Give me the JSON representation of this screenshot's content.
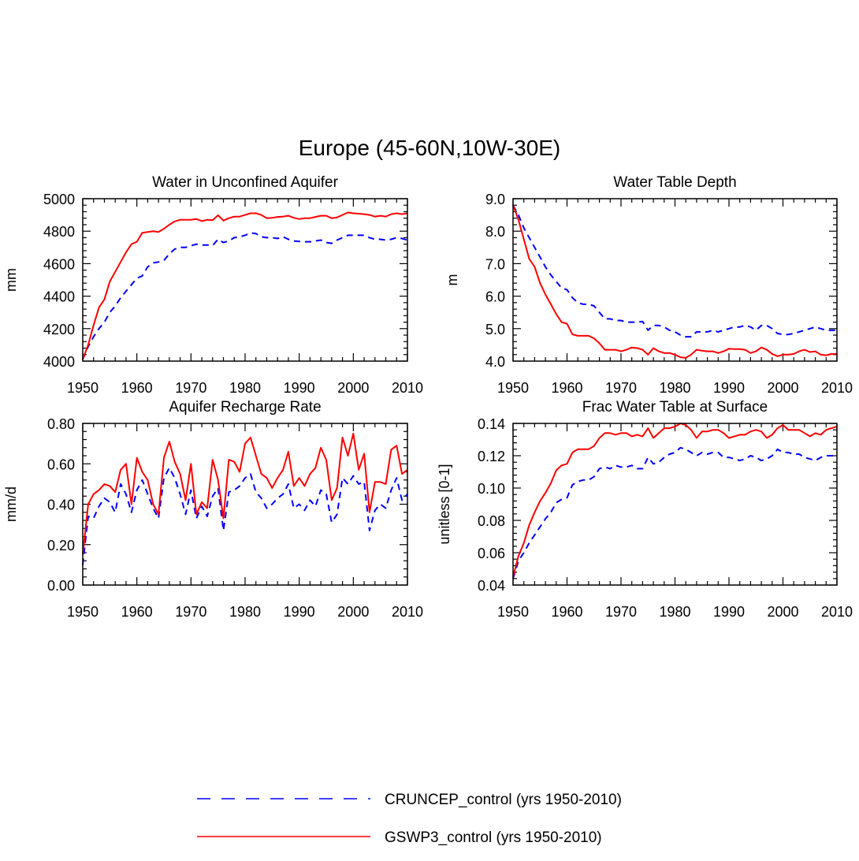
{
  "title": "Europe (45-60N,10W-30E)",
  "colors": {
    "cruncep": "#0000ff",
    "gswp3": "#ff0000"
  },
  "legend": [
    {
      "label": "CRUNCEP_control (yrs 1950-2010)",
      "color": "#0000ff",
      "style": "dashed"
    },
    {
      "label": "GSWP3_control (yrs 1950-2010)",
      "color": "#ff0000",
      "style": "solid"
    }
  ],
  "chart_data": [
    {
      "type": "line",
      "title": "Water in Unconfined Aquifer",
      "xlabel": "",
      "ylabel": "mm",
      "xlim": [
        1950,
        2010
      ],
      "ylim": [
        4000,
        5000
      ],
      "xticks": [
        "1950",
        "1960",
        "1970",
        "1980",
        "1990",
        "2000",
        "2010"
      ],
      "yticks": [
        "4000",
        "4200",
        "4400",
        "4600",
        "4800",
        "5000"
      ],
      "x_start": 1950,
      "series": [
        {
          "name": "CRUNCEP_control",
          "values": [
            4010,
            4090,
            4150,
            4200,
            4240,
            4300,
            4340,
            4390,
            4430,
            4470,
            4510,
            4525,
            4580,
            4605,
            4610,
            4620,
            4660,
            4690,
            4700,
            4700,
            4710,
            4720,
            4715,
            4715,
            4712,
            4750,
            4730,
            4740,
            4760,
            4765,
            4775,
            4790,
            4785,
            4765,
            4760,
            4760,
            4755,
            4765,
            4750,
            4740,
            4737,
            4735,
            4735,
            4740,
            4745,
            4730,
            4725,
            4745,
            4760,
            4775,
            4775,
            4775,
            4775,
            4760,
            4750,
            4750,
            4745,
            4750,
            4760,
            4755,
            4745
          ]
        },
        {
          "name": "GSWP3_control",
          "values": [
            4010,
            4100,
            4220,
            4330,
            4380,
            4490,
            4550,
            4610,
            4670,
            4720,
            4735,
            4790,
            4795,
            4800,
            4795,
            4815,
            4840,
            4860,
            4870,
            4870,
            4870,
            4875,
            4862,
            4870,
            4868,
            4898,
            4865,
            4880,
            4890,
            4890,
            4900,
            4910,
            4910,
            4900,
            4880,
            4882,
            4888,
            4890,
            4895,
            4882,
            4875,
            4880,
            4880,
            4888,
            4895,
            4895,
            4880,
            4885,
            4900,
            4915,
            4910,
            4908,
            4905,
            4900,
            4890,
            4895,
            4890,
            4905,
            4910,
            4905,
            4910
          ]
        }
      ]
    },
    {
      "type": "line",
      "title": "Water Table Depth",
      "xlabel": "",
      "ylabel": "m",
      "xlim": [
        1950,
        2010
      ],
      "ylim": [
        4.0,
        9.0
      ],
      "xticks": [
        "1950",
        "1960",
        "1970",
        "1980",
        "1990",
        "2000",
        "2010"
      ],
      "yticks": [
        "4.0",
        "5.0",
        "6.0",
        "7.0",
        "8.0",
        "9.0"
      ],
      "x_start": 1950,
      "series": [
        {
          "name": "CRUNCEP_control",
          "values": [
            8.8,
            8.5,
            8.1,
            7.8,
            7.5,
            7.2,
            6.9,
            6.65,
            6.45,
            6.25,
            6.2,
            5.95,
            5.8,
            5.75,
            5.75,
            5.7,
            5.5,
            5.3,
            5.3,
            5.25,
            5.25,
            5.2,
            5.2,
            5.2,
            5.22,
            4.95,
            5.1,
            5.1,
            5.05,
            4.95,
            4.9,
            4.8,
            4.75,
            4.75,
            4.9,
            4.9,
            4.9,
            4.95,
            4.9,
            4.95,
            5.0,
            5.05,
            5.05,
            5.1,
            5.05,
            4.95,
            5.1,
            5.1,
            5.0,
            4.85,
            4.82,
            4.82,
            4.85,
            4.9,
            4.95,
            5.0,
            5.05,
            5.0,
            4.95,
            4.95,
            4.95
          ]
        },
        {
          "name": "GSWP3_control",
          "values": [
            8.8,
            8.35,
            7.75,
            7.15,
            6.9,
            6.4,
            6.05,
            5.75,
            5.45,
            5.2,
            5.15,
            4.82,
            4.78,
            4.78,
            4.78,
            4.7,
            4.55,
            4.35,
            4.35,
            4.35,
            4.3,
            4.35,
            4.42,
            4.4,
            4.35,
            4.2,
            4.4,
            4.3,
            4.25,
            4.25,
            4.2,
            4.12,
            4.1,
            4.2,
            4.35,
            4.32,
            4.3,
            4.3,
            4.25,
            4.3,
            4.38,
            4.37,
            4.37,
            4.35,
            4.25,
            4.3,
            4.42,
            4.35,
            4.22,
            4.15,
            4.2,
            4.2,
            4.22,
            4.3,
            4.35,
            4.28,
            4.3,
            4.2,
            4.18,
            4.22,
            4.22
          ]
        }
      ]
    },
    {
      "type": "line",
      "title": "Aquifer Recharge Rate",
      "xlabel": "",
      "ylabel": "mm/d",
      "xlim": [
        1950,
        2010
      ],
      "ylim": [
        0.0,
        0.8
      ],
      "xticks": [
        "1950",
        "1960",
        "1970",
        "1980",
        "1990",
        "2000",
        "2010"
      ],
      "yticks": [
        "0.00",
        "0.20",
        "0.40",
        "0.60",
        "0.80"
      ],
      "x_start": 1950,
      "series": [
        {
          "name": "CRUNCEP_control",
          "values": [
            0.1,
            0.34,
            0.33,
            0.39,
            0.43,
            0.41,
            0.36,
            0.5,
            0.45,
            0.36,
            0.47,
            0.52,
            0.45,
            0.38,
            0.33,
            0.53,
            0.58,
            0.53,
            0.45,
            0.35,
            0.47,
            0.33,
            0.39,
            0.34,
            0.44,
            0.48,
            0.27,
            0.46,
            0.47,
            0.49,
            0.53,
            0.55,
            0.46,
            0.43,
            0.38,
            0.4,
            0.43,
            0.45,
            0.5,
            0.38,
            0.4,
            0.37,
            0.42,
            0.39,
            0.47,
            0.45,
            0.31,
            0.35,
            0.53,
            0.5,
            0.54,
            0.5,
            0.51,
            0.27,
            0.37,
            0.4,
            0.38,
            0.47,
            0.53,
            0.42,
            0.45
          ]
        },
        {
          "name": "GSWP3_control",
          "values": [
            0.15,
            0.4,
            0.45,
            0.47,
            0.5,
            0.49,
            0.46,
            0.57,
            0.6,
            0.4,
            0.63,
            0.56,
            0.52,
            0.4,
            0.35,
            0.63,
            0.71,
            0.61,
            0.55,
            0.42,
            0.6,
            0.35,
            0.41,
            0.38,
            0.62,
            0.52,
            0.33,
            0.62,
            0.61,
            0.56,
            0.7,
            0.73,
            0.64,
            0.55,
            0.53,
            0.48,
            0.53,
            0.57,
            0.66,
            0.49,
            0.53,
            0.49,
            0.55,
            0.58,
            0.68,
            0.62,
            0.42,
            0.48,
            0.73,
            0.64,
            0.75,
            0.57,
            0.65,
            0.36,
            0.51,
            0.51,
            0.5,
            0.67,
            0.69,
            0.55,
            0.57
          ]
        }
      ]
    },
    {
      "type": "line",
      "title": "Frac Water Table at Surface",
      "xlabel": "",
      "ylabel": "unitless [0-1]",
      "xlim": [
        1950,
        2010
      ],
      "ylim": [
        0.04,
        0.14
      ],
      "xticks": [
        "1950",
        "1960",
        "1970",
        "1980",
        "1990",
        "2000",
        "2010"
      ],
      "yticks": [
        "0.04",
        "0.06",
        "0.08",
        "0.10",
        "0.12",
        "0.14"
      ],
      "x_start": 1950,
      "series": [
        {
          "name": "CRUNCEP_control",
          "values": [
            0.044,
            0.055,
            0.06,
            0.066,
            0.071,
            0.076,
            0.081,
            0.085,
            0.091,
            0.093,
            0.094,
            0.102,
            0.104,
            0.105,
            0.105,
            0.107,
            0.112,
            0.113,
            0.112,
            0.114,
            0.113,
            0.113,
            0.114,
            0.112,
            0.112,
            0.119,
            0.115,
            0.116,
            0.119,
            0.121,
            0.122,
            0.125,
            0.124,
            0.122,
            0.12,
            0.122,
            0.121,
            0.122,
            0.122,
            0.119,
            0.119,
            0.118,
            0.117,
            0.118,
            0.12,
            0.119,
            0.117,
            0.118,
            0.12,
            0.124,
            0.122,
            0.122,
            0.121,
            0.121,
            0.119,
            0.118,
            0.117,
            0.119,
            0.12,
            0.12,
            0.12
          ]
        },
        {
          "name": "GSWP3_control",
          "values": [
            0.045,
            0.058,
            0.066,
            0.077,
            0.085,
            0.092,
            0.097,
            0.103,
            0.111,
            0.114,
            0.115,
            0.122,
            0.124,
            0.124,
            0.124,
            0.126,
            0.131,
            0.134,
            0.134,
            0.133,
            0.134,
            0.134,
            0.132,
            0.133,
            0.132,
            0.137,
            0.131,
            0.134,
            0.137,
            0.137,
            0.138,
            0.14,
            0.139,
            0.136,
            0.131,
            0.135,
            0.135,
            0.136,
            0.136,
            0.134,
            0.131,
            0.132,
            0.133,
            0.133,
            0.135,
            0.136,
            0.135,
            0.131,
            0.133,
            0.137,
            0.139,
            0.136,
            0.136,
            0.136,
            0.134,
            0.132,
            0.134,
            0.133,
            0.136,
            0.137,
            0.138
          ]
        }
      ]
    }
  ]
}
